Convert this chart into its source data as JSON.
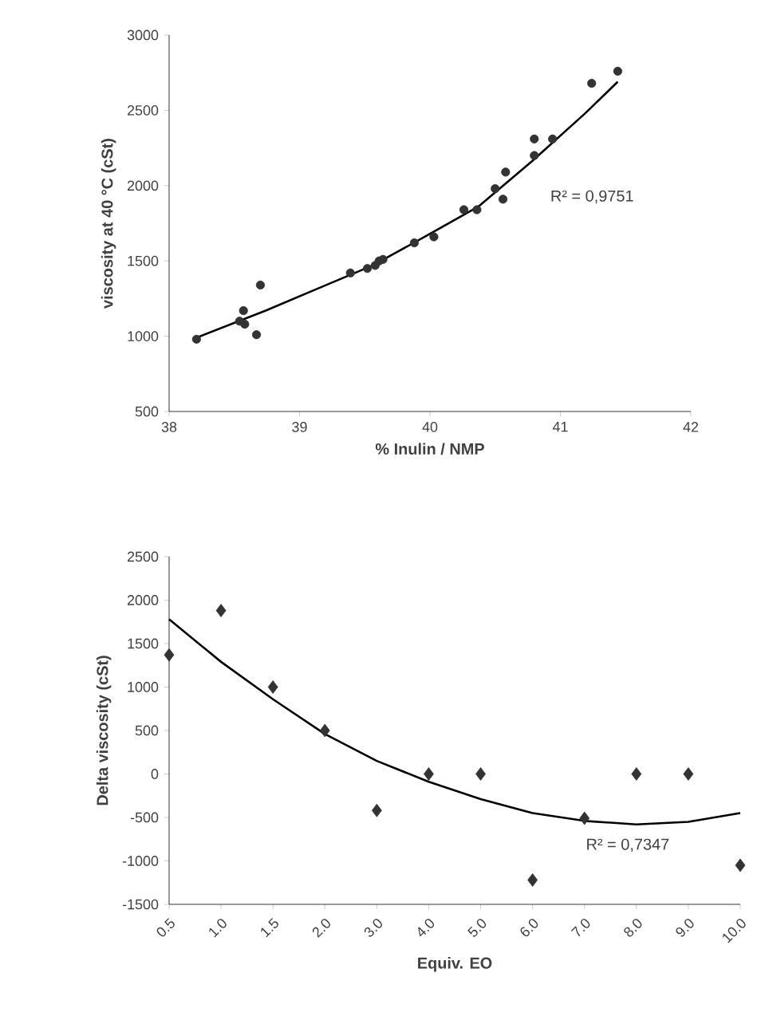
{
  "chart_data": [
    {
      "type": "scatter",
      "xlabel": "% Inulin / NMP",
      "ylabel": "viscosity at 40 °C (cSt)",
      "annotations": [
        "R² = 0,9751"
      ],
      "xlim": [
        38,
        42
      ],
      "xticks": [
        38,
        39,
        40,
        41,
        42
      ],
      "ylim": [
        500,
        3000
      ],
      "yticks": [
        500,
        1000,
        1500,
        2000,
        2500,
        3000
      ],
      "series": [
        {
          "marker": "circle",
          "color": "#333333",
          "x": [
            38.21,
            38.53,
            38.54,
            38.57,
            38.58,
            38.67,
            38.7,
            39.39,
            39.52,
            39.58,
            39.61,
            39.64,
            39.88,
            40.03,
            40.26,
            40.36,
            40.5,
            40.56,
            40.58,
            40.8,
            40.8,
            40.94,
            41.24,
            41.44
          ],
          "values": [
            980,
            null,
            1100,
            1170,
            1080,
            1010,
            1340,
            1420,
            1450,
            1470,
            1500,
            1510,
            1620,
            1660,
            1840,
            1840,
            1980,
            1910,
            2090,
            2310,
            2200,
            2310,
            2680,
            2760
          ]
        },
        {
          "type": "line",
          "marker": "none",
          "color": "#000000",
          "x": [
            38.21,
            38.74,
            39.15,
            39.56,
            39.96,
            40.37,
            40.78,
            41.19,
            41.44
          ],
          "values": [
            990,
            1170,
            1320,
            1470,
            1660,
            1860,
            2160,
            2480,
            2690
          ]
        }
      ]
    },
    {
      "type": "scatter",
      "xlabel": "Equiv. EO",
      "ylabel": "Delta viscosity (cSt)",
      "annotations": [
        "R² = 0,7347"
      ],
      "categories": [
        "0.5",
        "1.0",
        "1.5",
        "2.0",
        "3.0",
        "4.0",
        "5.0",
        "6.0",
        "7.0",
        "8.0",
        "9.0",
        "10.0"
      ],
      "ylim": [
        -1500,
        2500
      ],
      "yticks": [
        -1500,
        -1000,
        -500,
        0,
        500,
        1000,
        1500,
        2000,
        2500
      ],
      "series": [
        {
          "marker": "diamond",
          "color": "#333333",
          "values": [
            1370,
            1880,
            1000,
            500,
            -420,
            0,
            0,
            -1220,
            -510,
            0,
            0,
            -1050
          ]
        },
        {
          "type": "line",
          "marker": "none",
          "color": "#000000",
          "values": [
            1780,
            1290,
            860,
            460,
            150,
            -90,
            -290,
            -450,
            -540,
            -580,
            -550,
            -450
          ]
        }
      ]
    }
  ]
}
